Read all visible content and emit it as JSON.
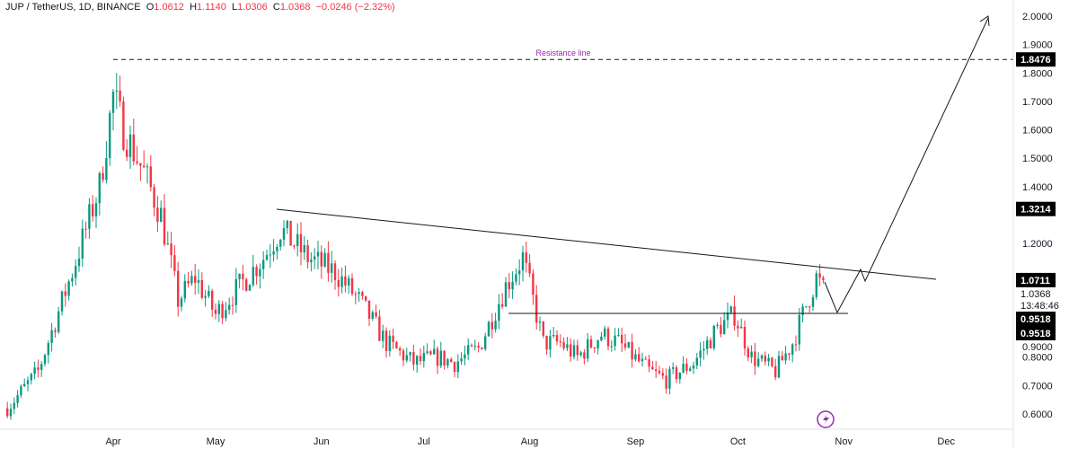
{
  "header": {
    "symbol": "JUP / TetherUS, 1D, BINANCE",
    "open_label": "O",
    "open": "1.0612",
    "high_label": "H",
    "high": "1.1140",
    "low_label": "L",
    "low": "1.0306",
    "close_label": "C",
    "close": "1.0368",
    "change": "−0.0246 (−2.32%)"
  },
  "chart_data": {
    "type": "candlestick",
    "ylim": [
      0.55,
      2.02
    ],
    "y_ticks": [
      "0.6000",
      "0.7000",
      "0.8000",
      "0.9000",
      "1.2000",
      "1.4000",
      "1.5000",
      "1.6000",
      "1.7000",
      "1.8000",
      "1.9000",
      "2.0000"
    ],
    "x_ticks": [
      {
        "label": "Apr",
        "date": "2024-04-01"
      },
      {
        "label": "May",
        "date": "2024-05-01"
      },
      {
        "label": "Jun",
        "date": "2024-06-01"
      },
      {
        "label": "Jul",
        "date": "2024-07-01"
      },
      {
        "label": "Aug",
        "date": "2024-08-01"
      },
      {
        "label": "Sep",
        "date": "2024-09-01"
      },
      {
        "label": "Oct",
        "date": "2024-10-01"
      },
      {
        "label": "Nov",
        "date": "2024-11-01"
      },
      {
        "label": "Dec",
        "date": "2024-12-01"
      }
    ],
    "approx_closes": [
      [
        "2024-03-01",
        0.62
      ],
      [
        "2024-03-10",
        0.75
      ],
      [
        "2024-03-20",
        1.1
      ],
      [
        "2024-03-28",
        1.4
      ],
      [
        "2024-04-01",
        1.72
      ],
      [
        "2024-04-04",
        1.6
      ],
      [
        "2024-04-10",
        1.45
      ],
      [
        "2024-04-15",
        1.3
      ],
      [
        "2024-04-20",
        1.0
      ],
      [
        "2024-04-25",
        1.08
      ],
      [
        "2024-05-01",
        0.95
      ],
      [
        "2024-05-08",
        1.05
      ],
      [
        "2024-05-15",
        1.15
      ],
      [
        "2024-05-20",
        1.25
      ],
      [
        "2024-05-28",
        1.15
      ],
      [
        "2024-06-05",
        1.1
      ],
      [
        "2024-06-12",
        1.0
      ],
      [
        "2024-06-20",
        0.85
      ],
      [
        "2024-06-28",
        0.78
      ],
      [
        "2024-07-05",
        0.8
      ],
      [
        "2024-07-10",
        0.78
      ],
      [
        "2024-07-17",
        0.83
      ],
      [
        "2024-07-25",
        1.05
      ],
      [
        "2024-07-30",
        1.15
      ],
      [
        "2024-08-05",
        0.85
      ],
      [
        "2024-08-10",
        0.85
      ],
      [
        "2024-08-15",
        0.8
      ],
      [
        "2024-08-22",
        0.88
      ],
      [
        "2024-08-27",
        0.85
      ],
      [
        "2024-09-05",
        0.75
      ],
      [
        "2024-09-10",
        0.72
      ],
      [
        "2024-09-18",
        0.78
      ],
      [
        "2024-09-25",
        0.9
      ],
      [
        "2024-09-30",
        0.95
      ],
      [
        "2024-10-05",
        0.8
      ],
      [
        "2024-10-12",
        0.75
      ],
      [
        "2024-10-17",
        0.85
      ],
      [
        "2024-10-24",
        1.08
      ],
      [
        "2024-10-26",
        1.0368
      ]
    ],
    "colors": {
      "up": "#089981",
      "down": "#f23645",
      "annotation": "#9c27b0"
    },
    "annotations": {
      "resistance_label": "Resistance line",
      "resistance_price": "1.8476",
      "level_1": "1.3214",
      "level_2": "1.0711",
      "last_price": "1.0368",
      "countdown": "13:48:46",
      "support_1": "0.9518",
      "support_2": "0.9518"
    }
  }
}
